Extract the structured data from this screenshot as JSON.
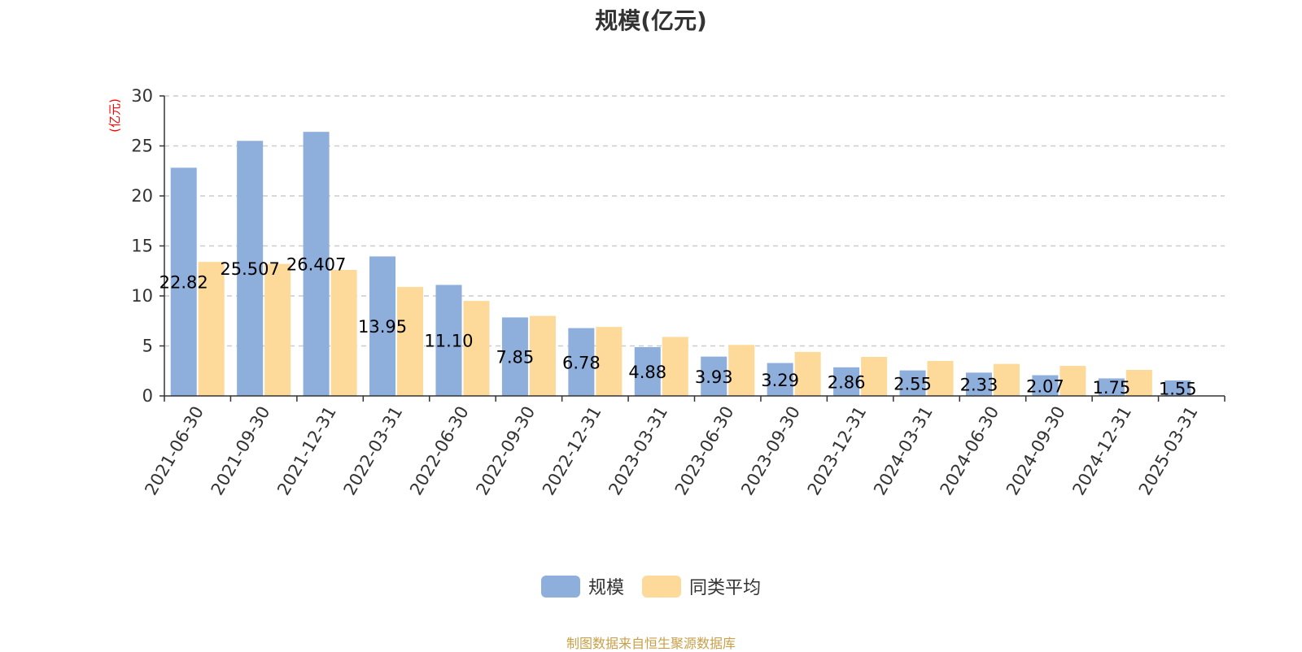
{
  "chart_data": {
    "type": "bar",
    "title": "规模(亿元)",
    "ylabel": "(亿元)",
    "ylim": [
      0,
      30
    ],
    "yticks": [
      0,
      5,
      10,
      15,
      20,
      25,
      30
    ],
    "grid": true,
    "legend_position": "bottom-center",
    "categories": [
      "2021-06-30",
      "2021-09-30",
      "2021-12-31",
      "2022-03-31",
      "2022-06-30",
      "2022-09-30",
      "2022-12-31",
      "2023-03-31",
      "2023-06-30",
      "2023-09-30",
      "2023-12-31",
      "2024-03-31",
      "2024-06-30",
      "2024-09-30",
      "2024-12-31",
      "2025-03-31"
    ],
    "series": [
      {
        "name": "规模",
        "color": "#8eaedb",
        "values": [
          22.82,
          25.507,
          26.407,
          13.95,
          11.1,
          7.85,
          6.78,
          4.88,
          3.93,
          3.29,
          2.86,
          2.55,
          2.33,
          2.07,
          1.75,
          1.55
        ],
        "labels": [
          "22.82",
          "25.507",
          "26.407",
          "13.95",
          "11.10",
          "7.85",
          "6.78",
          "4.88",
          "3.93",
          "3.29",
          "2.86",
          "2.55",
          "2.33",
          "2.07",
          "1.75",
          "1.55"
        ]
      },
      {
        "name": "同类平均",
        "color": "#fdd99a",
        "values": [
          13.4,
          13.2,
          12.6,
          10.9,
          9.5,
          8.0,
          6.9,
          5.9,
          5.1,
          4.4,
          3.9,
          3.5,
          3.2,
          3.0,
          2.6,
          null
        ]
      }
    ]
  },
  "source_note": "制图数据来自恒生聚源数据库",
  "colors": {
    "axis": "#333333",
    "grid": "#cccccc",
    "ylabel": "#ff0000",
    "source": "#c8a04a"
  }
}
